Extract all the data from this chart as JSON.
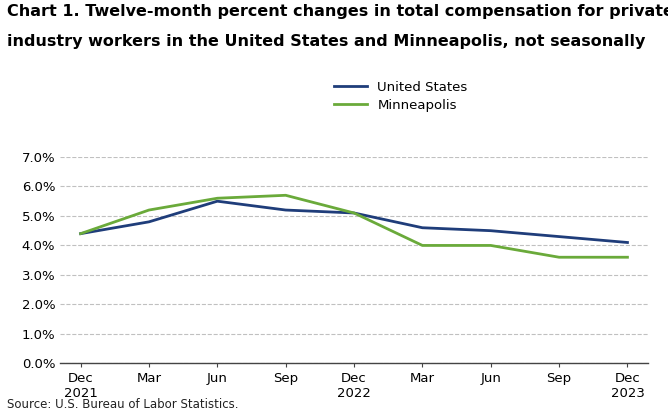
{
  "title_line1": "Chart 1. Twelve-month percent changes in total compensation for private",
  "title_line2": "industry workers in the United States and Minneapolis, not seasonally",
  "x_labels": [
    "Dec\n2021",
    "Mar",
    "Jun",
    "Sep",
    "Dec\n2022",
    "Mar",
    "Jun",
    "Sep",
    "Dec\n2023"
  ],
  "x_positions": [
    0,
    1,
    2,
    3,
    4,
    5,
    6,
    7,
    8
  ],
  "us_values": [
    4.4,
    4.8,
    5.5,
    5.2,
    5.1,
    4.6,
    4.5,
    4.3,
    4.1
  ],
  "mpls_values": [
    4.4,
    5.2,
    5.6,
    5.7,
    5.1,
    4.0,
    4.0,
    3.6,
    3.6
  ],
  "us_color": "#1f3d7a",
  "mpls_color": "#6aaa3a",
  "us_label": "United States",
  "mpls_label": "Minneapolis",
  "ylim": [
    0.0,
    7.0
  ],
  "yticks": [
    0.0,
    1.0,
    2.0,
    3.0,
    4.0,
    5.0,
    6.0,
    7.0
  ],
  "source_text": "Source: U.S. Bureau of Labor Statistics.",
  "bg_color": "#ffffff",
  "grid_color": "#c0c0c0",
  "title_fontsize": 11.5,
  "axis_fontsize": 9.5,
  "legend_fontsize": 9.5,
  "line_width": 2.0
}
